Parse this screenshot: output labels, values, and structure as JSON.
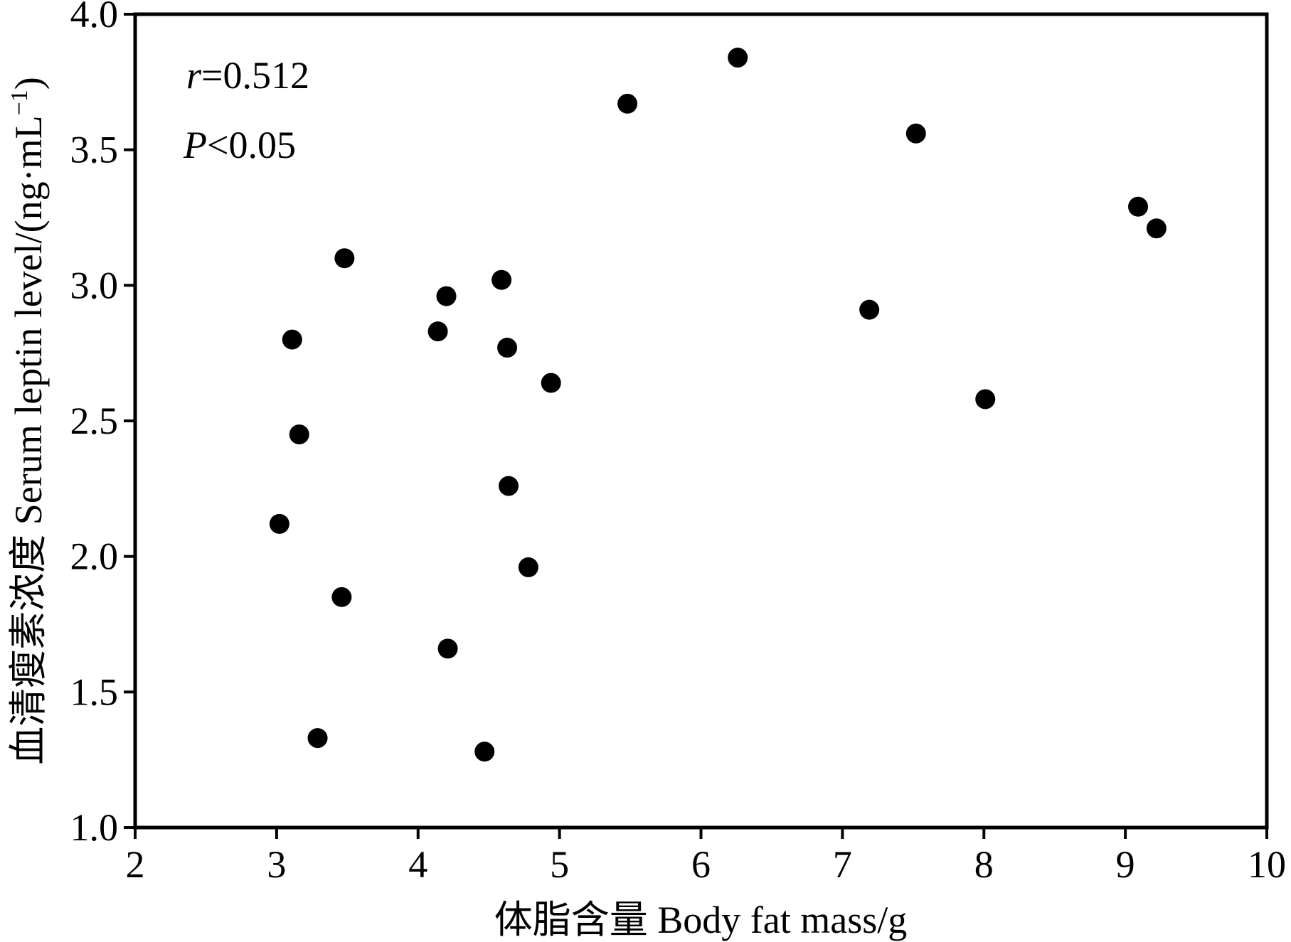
{
  "chart_data": {
    "type": "scatter",
    "xlabel": "体脂含量 Body fat mass/g",
    "ylabel": "血清瘦素浓度 Serum leptin level/(ng·mL",
    "ylabel_sup": "−1",
    "ylabel_close": ")",
    "xlim": [
      2,
      10
    ],
    "ylim": [
      1.0,
      4.0
    ],
    "x_ticks": [
      "2",
      "3",
      "4",
      "5",
      "6",
      "7",
      "8",
      "9",
      "10"
    ],
    "y_ticks": [
      "1.0",
      "1.5",
      "2.0",
      "2.5",
      "3.0",
      "3.5",
      "4.0"
    ],
    "grid": false,
    "marker_color": "#000000",
    "annotations": {
      "r_symbol": "r",
      "r_value": "=0.512",
      "p_symbol": "P",
      "p_value": "<0.05"
    },
    "points": [
      {
        "x": 3.02,
        "y": 2.12
      },
      {
        "x": 3.11,
        "y": 2.8
      },
      {
        "x": 3.16,
        "y": 2.45
      },
      {
        "x": 3.29,
        "y": 1.33
      },
      {
        "x": 3.46,
        "y": 1.85
      },
      {
        "x": 3.48,
        "y": 3.1
      },
      {
        "x": 4.14,
        "y": 2.83
      },
      {
        "x": 4.2,
        "y": 2.96
      },
      {
        "x": 4.21,
        "y": 1.66
      },
      {
        "x": 4.47,
        "y": 1.28
      },
      {
        "x": 4.59,
        "y": 3.02
      },
      {
        "x": 4.63,
        "y": 2.77
      },
      {
        "x": 4.64,
        "y": 2.26
      },
      {
        "x": 4.78,
        "y": 1.96
      },
      {
        "x": 4.94,
        "y": 2.64
      },
      {
        "x": 5.48,
        "y": 3.67
      },
      {
        "x": 6.26,
        "y": 3.84
      },
      {
        "x": 7.19,
        "y": 2.91
      },
      {
        "x": 7.52,
        "y": 3.56
      },
      {
        "x": 8.01,
        "y": 2.58
      },
      {
        "x": 9.09,
        "y": 3.29
      },
      {
        "x": 9.22,
        "y": 3.21
      }
    ]
  }
}
